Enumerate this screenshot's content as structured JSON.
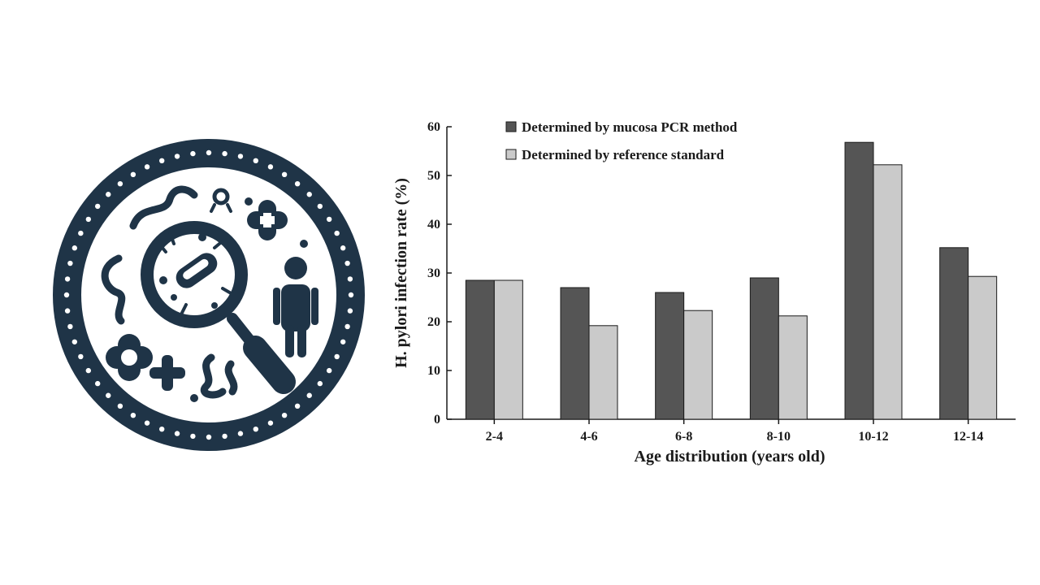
{
  "logo": {
    "icon": "microbe-magnifier-badge-icon",
    "colors": {
      "primary": "#1f3447",
      "background": "#ffffff"
    }
  },
  "chart_data": {
    "type": "bar",
    "categories": [
      "2-4",
      "4-6",
      "6-8",
      "8-10",
      "10-12",
      "12-14"
    ],
    "series": [
      {
        "name": "Determined by mucosa PCR method",
        "values": [
          28.5,
          27.0,
          26.0,
          29.0,
          56.8,
          35.2
        ],
        "color": "#555555"
      },
      {
        "name": "Determined by reference standard",
        "values": [
          28.5,
          19.2,
          22.3,
          21.2,
          52.2,
          29.3
        ],
        "color": "#cacaca"
      }
    ],
    "xlabel": "Age distribution (years old)",
    "ylabel": "H. pylori infection rate (%)",
    "ylim": [
      0,
      60
    ],
    "yticks": [
      0,
      10,
      20,
      30,
      40,
      50,
      60
    ],
    "grid": false,
    "legend_position": "top-left"
  }
}
